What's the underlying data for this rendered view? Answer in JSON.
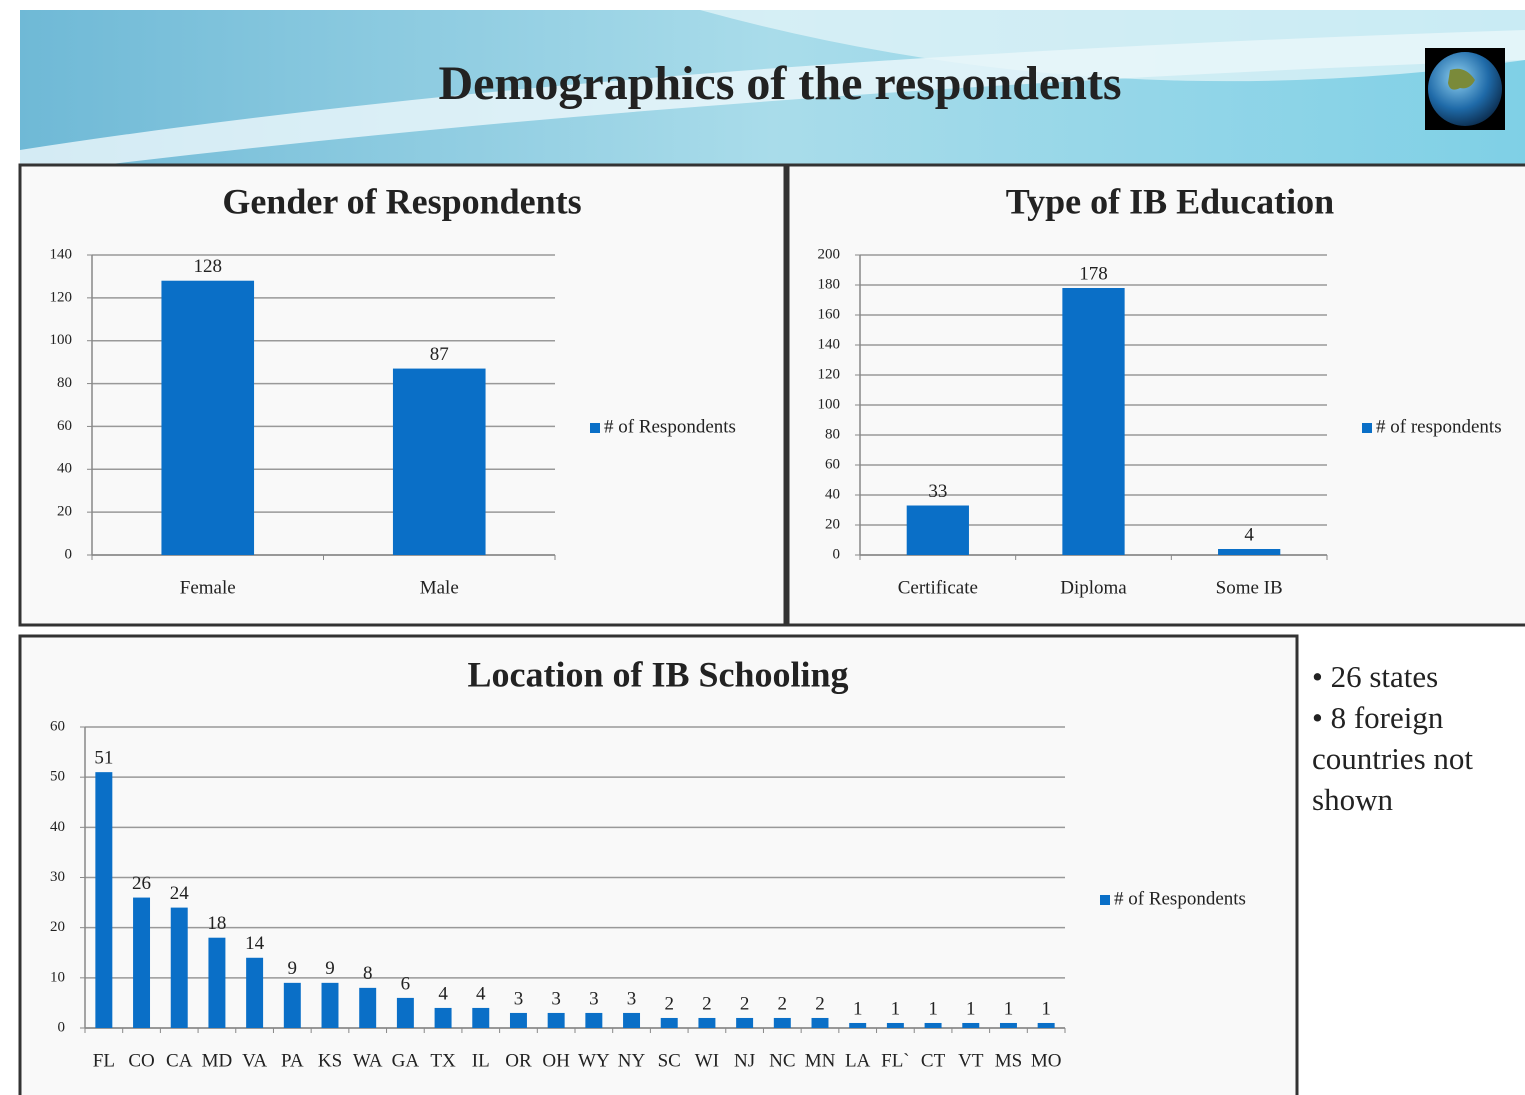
{
  "title": "Demographics of the respondents",
  "chart_data": [
    {
      "type": "bar",
      "title": "Gender of Respondents",
      "categories": [
        "Female",
        "Male"
      ],
      "series": [
        {
          "name": "# of Respondents",
          "color": "#0a6fc7",
          "values": [
            128,
            87
          ]
        }
      ],
      "ylim": [
        0,
        140
      ],
      "yticks": [
        0,
        20,
        40,
        60,
        80,
        100,
        120,
        140
      ],
      "grid": true,
      "legend": "right"
    },
    {
      "type": "bar",
      "title": "Type of IB Education",
      "categories": [
        "Certificate",
        "Diploma",
        "Some IB"
      ],
      "series": [
        {
          "name": "# of respondents",
          "color": "#0a6fc7",
          "values": [
            33,
            178,
            4
          ]
        }
      ],
      "ylim": [
        0,
        200
      ],
      "yticks": [
        0,
        20,
        40,
        60,
        80,
        100,
        120,
        140,
        160,
        180,
        200
      ],
      "grid": true,
      "legend": "right"
    },
    {
      "type": "bar",
      "title": "Location of IB Schooling",
      "categories": [
        "FL",
        "CO",
        "CA",
        "MD",
        "VA",
        "PA",
        "KS",
        "WA",
        "GA",
        "TX",
        "IL",
        "OR",
        "OH",
        "WY",
        "NY",
        "SC",
        "WI",
        "NJ",
        "NC",
        "MN",
        "LA",
        "FL`",
        "CT",
        "VT",
        "MS",
        "MO"
      ],
      "series": [
        {
          "name": "# of Respondents",
          "color": "#0a6fc7",
          "values": [
            51,
            26,
            24,
            18,
            14,
            9,
            9,
            8,
            6,
            4,
            4,
            3,
            3,
            3,
            3,
            2,
            2,
            2,
            2,
            2,
            1,
            1,
            1,
            1,
            1,
            1
          ]
        }
      ],
      "ylim": [
        0,
        60
      ],
      "yticks": [
        0,
        10,
        20,
        30,
        40,
        50,
        60
      ],
      "grid": true,
      "legend": "right"
    }
  ],
  "notes": [
    "26 states",
    "8 foreign countries not shown"
  ]
}
